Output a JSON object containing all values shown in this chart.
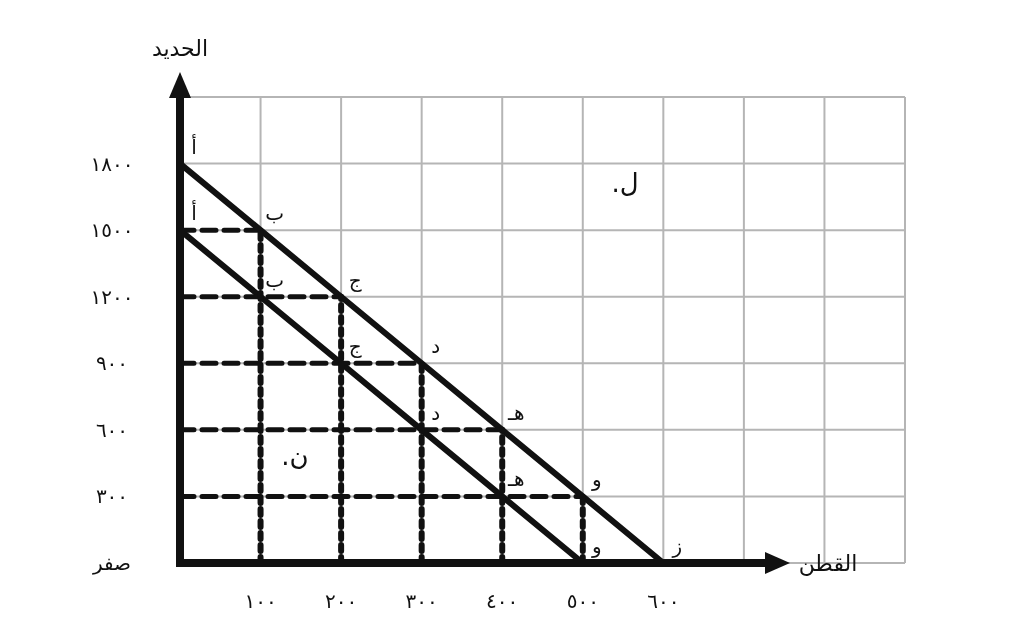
{
  "chart_data": {
    "type": "line",
    "xlabel": "القطن",
    "ylabel": "الحديد",
    "xlim": [
      0,
      900
    ],
    "ylim": [
      0,
      2100
    ],
    "xticks": [
      {
        "value": 100,
        "label": "١٠٠"
      },
      {
        "value": 200,
        "label": "٢٠٠"
      },
      {
        "value": 300,
        "label": "٣٠٠"
      },
      {
        "value": 400,
        "label": "٤٠٠"
      },
      {
        "value": 500,
        "label": "٥٠٠"
      },
      {
        "value": 600,
        "label": "٦٠٠"
      },
      {
        "value": 700,
        "label": null
      },
      {
        "value": 800,
        "label": null
      }
    ],
    "yticks": [
      {
        "value": 0,
        "label": "صفر"
      },
      {
        "value": 300,
        "label": "٣٠٠"
      },
      {
        "value": 600,
        "label": "٦٠٠"
      },
      {
        "value": 900,
        "label": "٩٠٠"
      },
      {
        "value": 1200,
        "label": "١٢٠٠"
      },
      {
        "value": 1500,
        "label": "١٥٠٠"
      },
      {
        "value": 1800,
        "label": "١٨٠٠"
      }
    ],
    "grid": true,
    "marker": "none",
    "series": [
      {
        "color": "#111111",
        "line_style": "solid",
        "x": [
          0,
          100,
          200,
          300,
          400,
          500,
          600
        ],
        "values": [
          1800,
          1500,
          1200,
          900,
          600,
          300,
          0
        ]
      },
      {
        "color": "#111111",
        "line_style": "solid",
        "x": [
          0,
          100,
          200,
          300,
          400,
          500
        ],
        "values": [
          1500,
          1200,
          900,
          600,
          300,
          0
        ]
      },
      {
        "color": "#111111",
        "line_style": "dashed",
        "x": [
          0,
          100
        ],
        "values": [
          1500,
          1500
        ]
      },
      {
        "color": "#111111",
        "line_style": "dashed",
        "x": [
          0,
          200
        ],
        "values": [
          1200,
          1200
        ]
      },
      {
        "color": "#111111",
        "line_style": "dashed",
        "x": [
          0,
          300
        ],
        "values": [
          900,
          900
        ]
      },
      {
        "color": "#111111",
        "line_style": "dashed",
        "x": [
          0,
          400
        ],
        "values": [
          600,
          600
        ]
      },
      {
        "color": "#111111",
        "line_style": "dashed",
        "x": [
          0,
          500
        ],
        "values": [
          300,
          300
        ]
      },
      {
        "color": "#111111",
        "line_style": "dotted",
        "x": [
          100,
          100
        ],
        "values": [
          0,
          1500
        ]
      },
      {
        "color": "#111111",
        "line_style": "dotted",
        "x": [
          200,
          200
        ],
        "values": [
          0,
          1200
        ]
      },
      {
        "color": "#111111",
        "line_style": "dotted",
        "x": [
          300,
          300
        ],
        "values": [
          0,
          900
        ]
      },
      {
        "color": "#111111",
        "line_style": "dotted",
        "x": [
          400,
          400
        ],
        "values": [
          0,
          600
        ]
      },
      {
        "color": "#111111",
        "line_style": "dotted",
        "x": [
          500,
          500
        ],
        "values": [
          0,
          300
        ]
      }
    ],
    "annotations": [
      {
        "text": "أ",
        "x": 0,
        "y": 1800
      },
      {
        "text": "ب",
        "x": 100,
        "y": 1500
      },
      {
        "text": "ج",
        "x": 200,
        "y": 1200
      },
      {
        "text": "د",
        "x": 300,
        "y": 900
      },
      {
        "text": "هـ",
        "x": 400,
        "y": 600
      },
      {
        "text": "و",
        "x": 500,
        "y": 300
      },
      {
        "text": "ز",
        "x": 600,
        "y": 0
      },
      {
        "text": "أ",
        "x": 0,
        "y": 1500
      },
      {
        "text": "ب",
        "x": 100,
        "y": 1200
      },
      {
        "text": "ج",
        "x": 200,
        "y": 900
      },
      {
        "text": "د",
        "x": 300,
        "y": 600
      },
      {
        "text": "هـ",
        "x": 400,
        "y": 300
      },
      {
        "text": "و",
        "x": 500,
        "y": 0
      },
      "ل.",
      "ن."
    ]
  }
}
